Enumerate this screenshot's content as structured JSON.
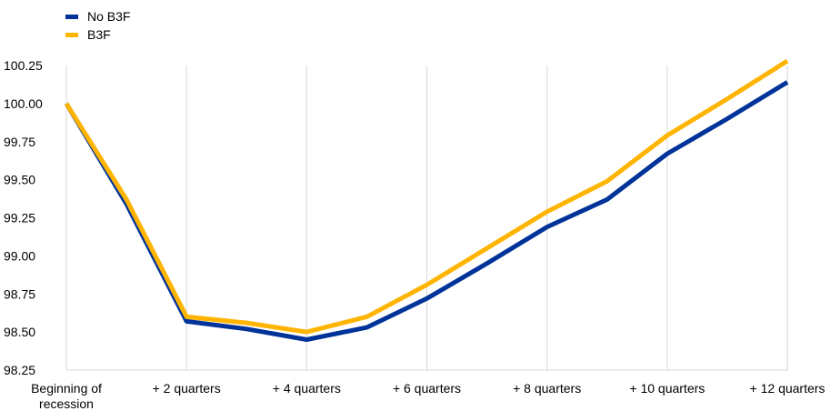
{
  "colors": {
    "no_b3f": "#003399",
    "b3f": "#FFB400",
    "grid": "#D9D9D9"
  },
  "legend": {
    "items": [
      {
        "label": "No B3F",
        "color": "#003399"
      },
      {
        "label": "B3F",
        "color": "#FFB400"
      }
    ]
  },
  "chart_data": {
    "type": "line",
    "title": "",
    "xlabel": "",
    "ylabel": "",
    "x_tick_labels": [
      [
        "Beginning of",
        "recession"
      ],
      [
        "+ 2 quarters"
      ],
      [
        "+ 4 quarters"
      ],
      [
        "+ 6 quarters"
      ],
      [
        "+ 8 quarters"
      ],
      [
        "+ 10 quarters"
      ],
      [
        "+ 12 quarters"
      ]
    ],
    "x_tick_positions": [
      0,
      2,
      4,
      6,
      8,
      10,
      12
    ],
    "x": [
      0,
      1,
      2,
      3,
      4,
      5,
      6,
      7,
      8,
      9,
      10,
      11,
      12
    ],
    "ylim": [
      98.25,
      100.25
    ],
    "y_ticks": [
      "98.25",
      "98.50",
      "98.75",
      "99.00",
      "99.25",
      "99.50",
      "99.75",
      "100.00",
      "100.25"
    ],
    "grid": "vertical",
    "legend_position": "top-left",
    "series": [
      {
        "name": "No B3F",
        "color": "#003399",
        "values": [
          100.0,
          99.34,
          98.57,
          98.52,
          98.45,
          98.53,
          98.72,
          98.95,
          99.19,
          99.37,
          99.67,
          99.9,
          100.14
        ]
      },
      {
        "name": "B3F",
        "color": "#FFB400",
        "values": [
          100.0,
          99.37,
          98.6,
          98.56,
          98.5,
          98.6,
          98.81,
          99.05,
          99.29,
          99.49,
          99.79,
          100.03,
          100.28
        ]
      }
    ]
  }
}
